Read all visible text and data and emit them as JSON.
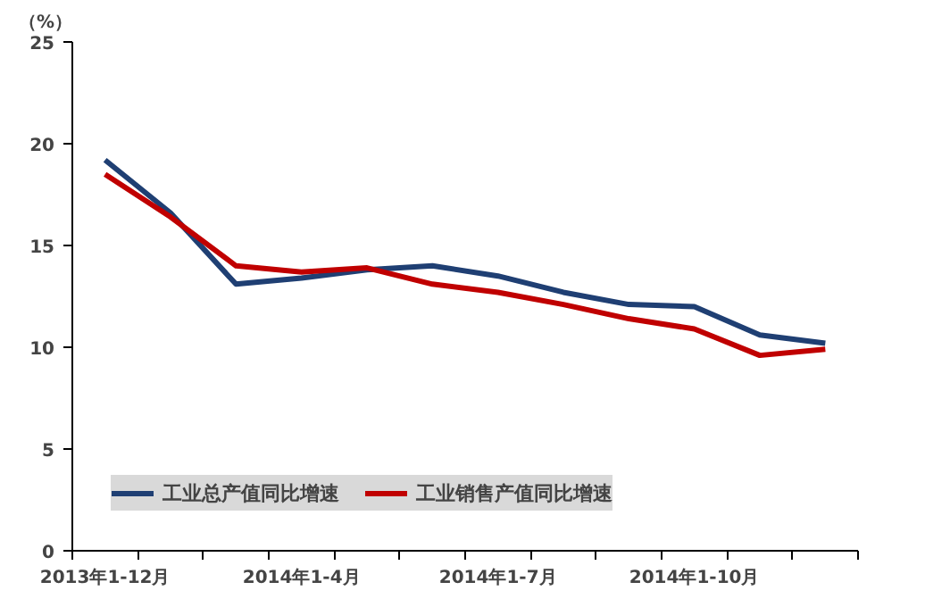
{
  "chart_data": {
    "type": "line",
    "ylabel": "（%）",
    "categories": [
      "2013年1-12月",
      null,
      null,
      "2014年1-4月",
      null,
      null,
      "2014年1-7月",
      null,
      null,
      "2014年1-10月",
      null,
      null
    ],
    "series": [
      {
        "name": "工业总产值同比增速",
        "color": "#1f3f73",
        "values": [
          19.2,
          16.6,
          13.1,
          13.4,
          13.8,
          14.0,
          13.5,
          12.7,
          12.1,
          12.0,
          10.6,
          10.2
        ]
      },
      {
        "name": "工业销售产值同比增速",
        "color": "#c00000",
        "values": [
          18.5,
          16.4,
          14.0,
          13.7,
          13.9,
          13.1,
          12.7,
          12.1,
          11.4,
          10.9,
          9.6,
          9.9
        ]
      }
    ],
    "ylim": [
      0,
      25
    ],
    "yticks": [
      0,
      5,
      10,
      15,
      20,
      25
    ],
    "grid": false,
    "legend": "bottom left",
    "marker": "none",
    "line_style": "solid"
  }
}
